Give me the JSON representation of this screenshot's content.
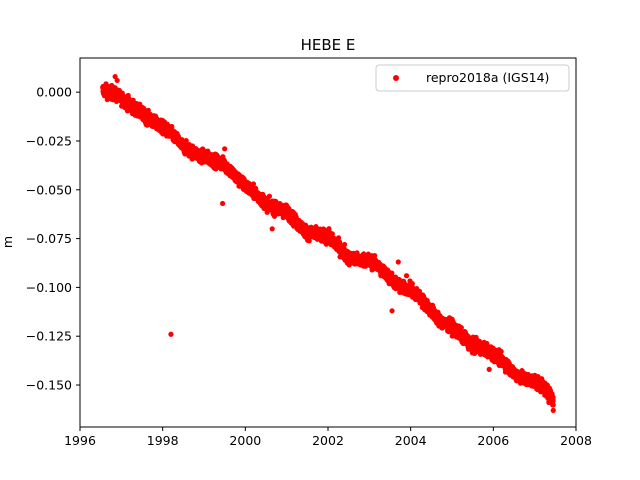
{
  "chart_data": {
    "type": "scatter",
    "title": "HEBE E",
    "xlabel": "",
    "ylabel": "m",
    "xlim": [
      1996.0,
      2008.0
    ],
    "ylim": [
      -0.1715,
      0.0175
    ],
    "xticks": [
      1996,
      1998,
      2000,
      2002,
      2004,
      2006,
      2008
    ],
    "xtick_labels": [
      "1996",
      "1998",
      "2000",
      "2002",
      "2004",
      "2006",
      "2008"
    ],
    "yticks": [
      0.0,
      -0.025,
      -0.05,
      -0.075,
      -0.1,
      -0.125,
      -0.15
    ],
    "ytick_labels": [
      "0.000",
      "−0.025",
      "−0.050",
      "−0.075",
      "−0.100",
      "−0.125",
      "−0.150"
    ],
    "grid": false,
    "legend_position": "top-right",
    "series": [
      {
        "name": "repro2018a (IGS14)",
        "color": "#ff0000",
        "trend_points": [
          [
            1996.55,
            0.001
          ],
          [
            1996.75,
            0.0
          ],
          [
            1997.0,
            -0.003
          ],
          [
            1997.25,
            -0.007
          ],
          [
            1997.5,
            -0.011
          ],
          [
            1997.75,
            -0.015
          ],
          [
            1998.0,
            -0.018
          ],
          [
            1998.25,
            -0.022
          ],
          [
            1998.5,
            -0.028
          ],
          [
            1998.75,
            -0.031
          ],
          [
            1999.0,
            -0.033
          ],
          [
            1999.25,
            -0.035
          ],
          [
            1999.5,
            -0.037
          ],
          [
            1999.75,
            -0.043
          ],
          [
            2000.0,
            -0.048
          ],
          [
            2000.25,
            -0.052
          ],
          [
            2000.5,
            -0.057
          ],
          [
            2000.75,
            -0.06
          ],
          [
            2001.0,
            -0.061
          ],
          [
            2001.25,
            -0.067
          ],
          [
            2001.5,
            -0.072
          ],
          [
            2001.75,
            -0.073
          ],
          [
            2002.0,
            -0.074
          ],
          [
            2002.25,
            -0.079
          ],
          [
            2002.5,
            -0.085
          ],
          [
            2002.75,
            -0.086
          ],
          [
            2003.0,
            -0.086
          ],
          [
            2003.25,
            -0.09
          ],
          [
            2003.5,
            -0.095
          ],
          [
            2003.75,
            -0.1
          ],
          [
            2004.0,
            -0.101
          ],
          [
            2004.25,
            -0.106
          ],
          [
            2004.5,
            -0.112
          ],
          [
            2004.75,
            -0.118
          ],
          [
            2005.0,
            -0.12
          ],
          [
            2005.25,
            -0.125
          ],
          [
            2005.5,
            -0.13
          ],
          [
            2005.75,
            -0.131
          ],
          [
            2006.0,
            -0.134
          ],
          [
            2006.25,
            -0.138
          ],
          [
            2006.5,
            -0.144
          ],
          [
            2006.75,
            -0.147
          ],
          [
            2007.0,
            -0.148
          ],
          [
            2007.25,
            -0.152
          ],
          [
            2007.45,
            -0.158
          ]
        ],
        "outliers": [
          [
            1996.85,
            0.008
          ],
          [
            1996.9,
            0.006
          ],
          [
            1998.2,
            -0.124
          ],
          [
            1999.45,
            -0.057
          ],
          [
            1999.5,
            -0.029
          ],
          [
            2000.65,
            -0.07
          ],
          [
            2002.4,
            -0.078
          ],
          [
            2003.7,
            -0.087
          ],
          [
            2003.55,
            -0.112
          ],
          [
            2003.9,
            -0.094
          ],
          [
            2005.9,
            -0.142
          ],
          [
            2007.45,
            -0.163
          ]
        ]
      }
    ]
  }
}
